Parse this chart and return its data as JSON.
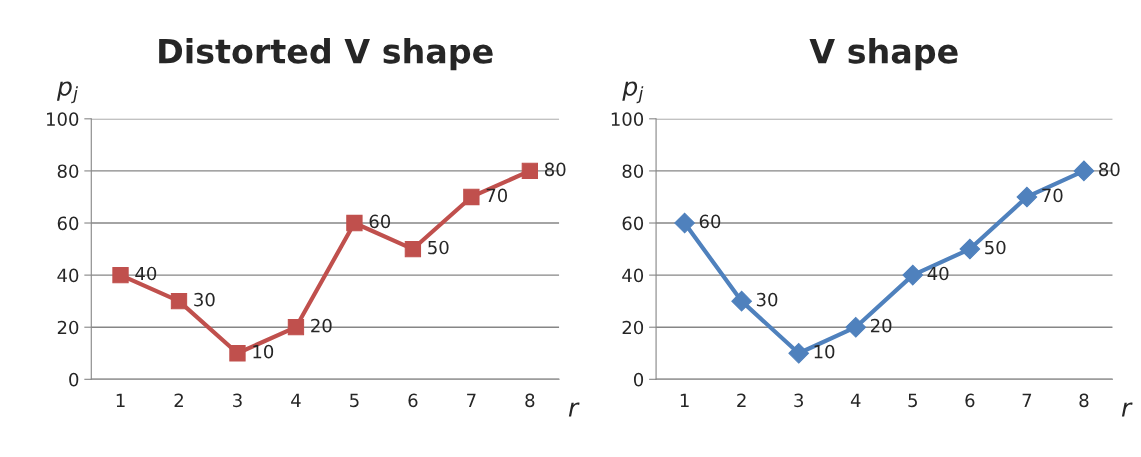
{
  "chart_data": [
    {
      "type": "line",
      "title": "Distorted V shape",
      "xlabel": "r",
      "ylabel": "p$_{j}$",
      "categories": [
        "1",
        "2",
        "3",
        "4",
        "5",
        "6",
        "7",
        "8"
      ],
      "series": [
        {
          "color": "#c0504d",
          "values": [
            40,
            30,
            10,
            20,
            60,
            50,
            70,
            80
          ]
        }
      ],
      "marker": "square",
      "ylim": [
        0,
        100
      ],
      "yticks": [
        0,
        20,
        40,
        60,
        80,
        100
      ],
      "grid": "y",
      "data_labels": true,
      "legend": false
    },
    {
      "type": "line",
      "title": "V shape",
      "xlabel": "r",
      "ylabel": "p$_{j}$",
      "categories": [
        "1",
        "2",
        "3",
        "4",
        "5",
        "6",
        "7",
        "8"
      ],
      "series": [
        {
          "color": "#4f81bd",
          "values": [
            60,
            30,
            10,
            20,
            40,
            50,
            70,
            80
          ]
        }
      ],
      "marker": "diamond",
      "ylim": [
        0,
        100
      ],
      "yticks": [
        0,
        20,
        40,
        60,
        80,
        100
      ],
      "grid": "y",
      "data_labels": true,
      "legend": false
    }
  ]
}
